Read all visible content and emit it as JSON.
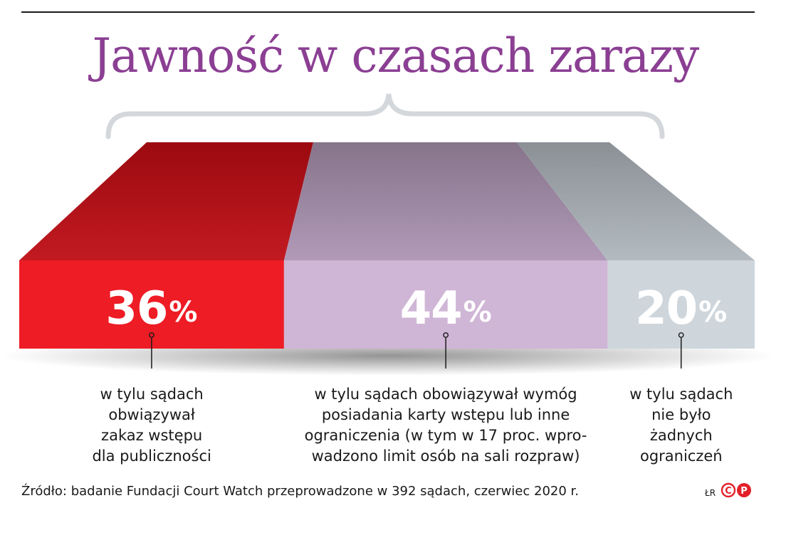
{
  "title": "Jawność w czasach zarazy",
  "chart_data": {
    "type": "bar",
    "orientation": "stacked-horizontal-100",
    "categories": [
      "w tylu sądach obwiązywał zakaz wstępu dla publiczności",
      "w tylu sądach obowiązywał wymóg posiadania karty wstępu lub inne ograniczenia (w tym w 17 proc. wprowadzono limit osób na sali rozpraw)",
      "w tylu sądach nie było żadnych ograniczeń"
    ],
    "values": [
      36,
      44,
      20
    ],
    "unit": "%",
    "colors": [
      "#ee1c25",
      "#cfb5d6",
      "#ced6dc"
    ],
    "top_colors_back": [
      "#9b0a10",
      "#86748a",
      "#8b9095"
    ],
    "top_colors_front": [
      "#c21a21",
      "#b19ab8",
      "#b3bbc0"
    ],
    "labels": [
      {
        "num": "36",
        "sym": "%"
      },
      {
        "num": "44",
        "sym": "%"
      },
      {
        "num": "20",
        "sym": "%"
      }
    ],
    "descriptions": [
      [
        "w tylu sądach",
        "obwiązywał",
        "zakaz wstępu",
        "dla publiczności"
      ],
      [
        "w tylu sądach obowiązywał wymóg",
        "posiadania karty wstępu lub inne",
        "ograniczenia (w tym w 17 proc. wpro-",
        "wadzono limit osób na sali rozpraw)"
      ],
      [
        "w tylu sądach",
        "nie było",
        "żadnych",
        "ograniczeń"
      ]
    ]
  },
  "source": "Źródło: badanie Fundacji Court Watch przeprowadzone w 392 sądach, czerwiec 2020 r.",
  "credit": "ŁR",
  "logo": {
    "c": "C",
    "p": "P",
    "color": "#e3202a"
  }
}
